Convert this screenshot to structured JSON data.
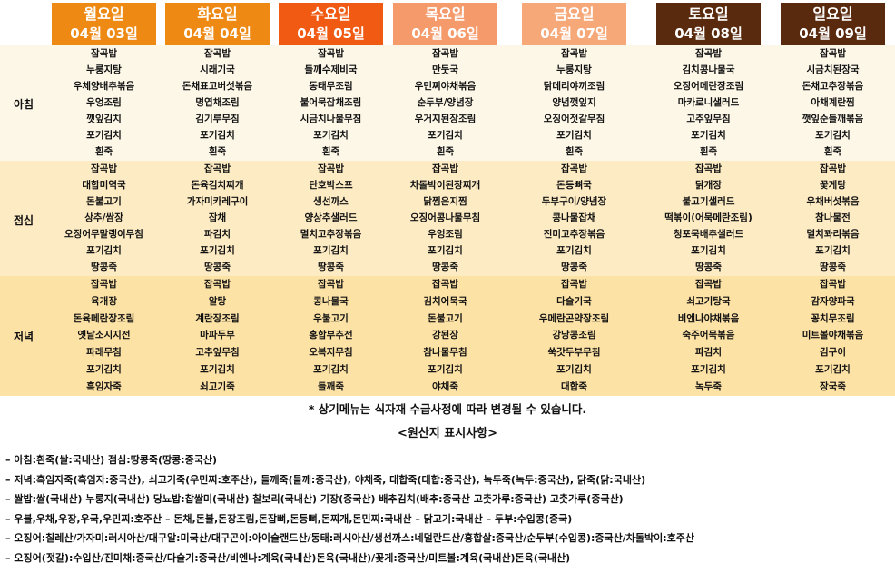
{
  "meal_labels": {
    "breakfast": "아침",
    "lunch": "점심",
    "dinner": "저녁"
  },
  "colors": {
    "breakfast_bg": "#fdf7e8",
    "lunch_bg": "#fdebc4",
    "dinner_bg": "#fde2a6",
    "header_orange": "#ee8a14",
    "header_wednesday": "#f05a12",
    "header_thursday": "#f59a6a",
    "header_friday": "#f7a878",
    "header_weekend": "#5a2a0e"
  },
  "days": [
    {
      "day": "월요일",
      "date": "04월 03일",
      "color": "#ee8a14",
      "breakfast": [
        "잡곡밥",
        "누룽지탕",
        "우체양배추볶음",
        "우엉조림",
        "깻잎김치",
        "포기김치",
        "흰죽"
      ],
      "lunch": [
        "잡곡밥",
        "대합미역국",
        "돈불고기",
        "상추/쌈장",
        "오징어무말랭이무침",
        "포기김치",
        "땅콩죽"
      ],
      "dinner": [
        "잡곡밥",
        "육개장",
        "돈육메란장조림",
        "옛날소시지전",
        "파래무침",
        "포기김치",
        "흑임자죽"
      ]
    },
    {
      "day": "화요일",
      "date": "04월 04일",
      "color": "#ee8a14",
      "breakfast": [
        "잡곡밥",
        "시래기국",
        "돈채표고버섯볶음",
        "명엽채조림",
        "김기루무침",
        "포기김치",
        "흰죽"
      ],
      "lunch": [
        "잡곡밥",
        "돈육김치찌개",
        "가자미카레구이",
        "잡채",
        "파김치",
        "포기김치",
        "땅콩죽"
      ],
      "dinner": [
        "잡곡밥",
        "알탕",
        "계란장조림",
        "마파두부",
        "고추잎무침",
        "포기김치",
        "쇠고기죽"
      ]
    },
    {
      "day": "수요일",
      "date": "04월 05일",
      "color": "#f05a12",
      "breakfast": [
        "잡곡밥",
        "들깨수제비국",
        "동태무조림",
        "불어묵잡채조림",
        "시금치나물무침",
        "포기김치",
        "흰죽"
      ],
      "lunch": [
        "잡곡밥",
        "단호박스프",
        "생선까스",
        "양상추샐러드",
        "멸치고추장볶음",
        "포기김치",
        "땅콩죽"
      ],
      "dinner": [
        "잡곡밥",
        "콩나물국",
        "우불고기",
        "홍합부추전",
        "오복지무침",
        "포기김치",
        "들깨죽"
      ]
    },
    {
      "day": "목요일",
      "date": "04월 06일",
      "color": "#f59a6a",
      "breakfast": [
        "잡곡밥",
        "만둣국",
        "우민찌야채볶음",
        "순두부/양념장",
        "우거지된장조림",
        "포기김치",
        "흰죽"
      ],
      "lunch": [
        "잡곡밥",
        "차돌박이된장찌개",
        "닭찜은지찜",
        "오징어콩나물무침",
        "우엉조림",
        "포기김치",
        "땅콩죽"
      ],
      "dinner": [
        "잡곡밥",
        "김치어묵국",
        "돈불고기",
        "강된장",
        "참나물무침",
        "포기김치",
        "야채죽"
      ]
    },
    {
      "day": "금요일",
      "date": "04월 07일",
      "color": "#f7a878",
      "breakfast": [
        "잡곡밥",
        "누룽지탕",
        "닭데리야끼조림",
        "양념깻잎지",
        "오징어젓갈무침",
        "포기김치",
        "흰죽"
      ],
      "lunch": [
        "잡곡밥",
        "돈등뼈국",
        "두부구이/양념장",
        "콩나물잡채",
        "진미고추장볶음",
        "포기김치",
        "땅콩죽"
      ],
      "dinner": [
        "잡곡밥",
        "다슬기국",
        "우메란곤약장조림",
        "강낭콩조림",
        "쑥갓두부무침",
        "포기김치",
        "대합죽"
      ]
    },
    {
      "day": "토요일",
      "date": "04월 08일",
      "color": "#5a2a0e",
      "breakfast": [
        "잡곡밥",
        "김치콩나물국",
        "오징어메란장조림",
        "마카로니샐러드",
        "고추잎무침",
        "포기김치",
        "흰죽"
      ],
      "lunch": [
        "잡곡밥",
        "닭개장",
        "불고기샐러드",
        "떡볶이(어묵메란조림)",
        "청포묵배추샐러드",
        "포기김치",
        "땅콩죽"
      ],
      "dinner": [
        "잡곡밥",
        "쇠고기탕국",
        "비엔나야채볶음",
        "숙주어묵볶음",
        "파김치",
        "포기김치",
        "녹두죽"
      ]
    },
    {
      "day": "일요일",
      "date": "04월 09일",
      "color": "#5a2a0e",
      "breakfast": [
        "잡곡밥",
        "시금치된장국",
        "돈채고추장볶음",
        "아채계란찜",
        "깻잎순들깨볶음",
        "포기김치",
        "흰죽"
      ],
      "lunch": [
        "잡곡밥",
        "꽃게탕",
        "우채버섯볶음",
        "참나물전",
        "멸치꽈리볶음",
        "포기김치",
        "땅콩죽"
      ],
      "dinner": [
        "잡곡밥",
        "감자양파국",
        "꽁치무조림",
        "미트볼야채볶음",
        "김구이",
        "포기김치",
        "장국죽"
      ]
    }
  ],
  "note": "* 상기메뉴는 식자재 수급사정에 따라 변경될 수 있습니다.",
  "origin_title": "<원산지 표시사항>",
  "origin_lines": [
    "– 아침:흰죽(쌀:국내산) 점심:땅콩죽(땅콩:중국산)",
    "– 저녁:흑임자죽(흑임자:중국산), 쇠고기죽(우민찌:호주산), 들깨죽(들깨:중국산), 야채죽, 대합죽(대합:중국산), 녹두죽(녹두:중국산), 닭죽(닭:국내산)",
    "– 쌀밥:쌀(국내산) 누룽지(국내산) 당뇨밥:찹쌀미(국내산) 찰보리(국내산) 기장(중국산) 배추김치(배추:중국산 고춧가루:중국산) 고춧가루(중국산)",
    "– 우불,우채,우장,우국,우민찌:호주산 – 돈채,돈불,돈장조림,돈잡뼈,돈등뼈,돈찌개,돈민찌:국내산 – 닭고기:국내산 – 두부:수입콩(중국)",
    "– 오징어:칠레산/가자미:러시아산/대구알:미국산/대구곤이:아이슬랜드산/동태:러시아산/생선까스:네덜란드산/홍합살:중국산/순두부(수입콩):중국산/차돌박이:호주산",
    "– 오징어(젓갈):수입산/진미채:중국산/다슬기:중국산/비엔나:계육(국내산)돈육(국내산)/꽃게:중국산/미트볼:계육(국내산)돈육(국내산)"
  ]
}
